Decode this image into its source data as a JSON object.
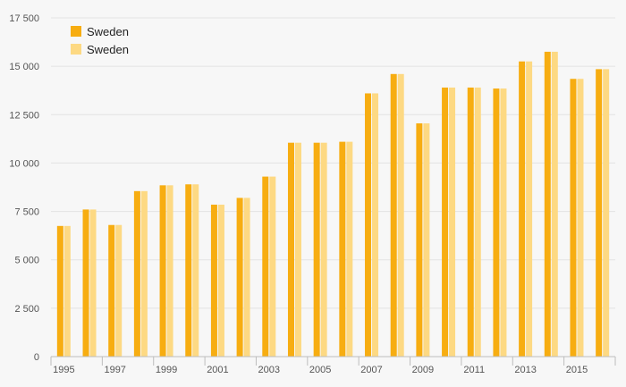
{
  "chart_data": {
    "type": "bar",
    "title": "",
    "xlabel": "",
    "ylabel": "",
    "categories": [
      "1995",
      "1996",
      "1997",
      "1998",
      "1999",
      "2000",
      "2001",
      "2002",
      "2003",
      "2004",
      "2005",
      "2006",
      "2007",
      "2008",
      "2009",
      "2010",
      "2011",
      "2012",
      "2013",
      "2014",
      "2015",
      "2016"
    ],
    "x_tick_labels": [
      "1995",
      "1997",
      "1999",
      "2001",
      "2003",
      "2005",
      "2007",
      "2009",
      "2011",
      "2013",
      "2015"
    ],
    "series": [
      {
        "name": "Sweden",
        "color": "#f7ad11",
        "values": [
          6750,
          7600,
          6800,
          8550,
          8850,
          8900,
          7850,
          8200,
          9300,
          11050,
          11050,
          11100,
          13600,
          14600,
          12050,
          13900,
          13900,
          13850,
          15250,
          15750,
          14350,
          14850
        ]
      },
      {
        "name": "Sweden",
        "color": "#fdd983",
        "values": [
          6750,
          7600,
          6800,
          8550,
          8850,
          8900,
          7850,
          8200,
          9300,
          11050,
          11050,
          11100,
          13600,
          14600,
          12050,
          13900,
          13900,
          13850,
          15250,
          15750,
          14350,
          14850
        ]
      }
    ],
    "ylim": [
      0,
      17500
    ],
    "y_ticks": [
      0,
      2500,
      5000,
      7500,
      10000,
      12500,
      15000,
      17500
    ],
    "y_tick_labels": [
      "0",
      "2 500",
      "5 000",
      "7 500",
      "10 000",
      "12 500",
      "15 000",
      "17 500"
    ],
    "grid": true,
    "legend_position": "top-left"
  }
}
